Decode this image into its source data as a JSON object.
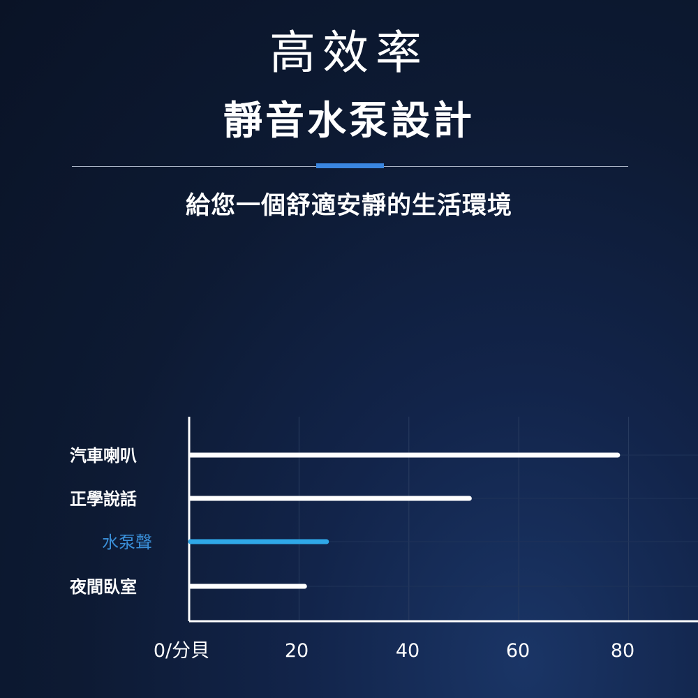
{
  "header": {
    "title": "高效率",
    "headline": "靜音水泵設計",
    "subtitle": "給您一個舒適安靜的生活環境"
  },
  "colors": {
    "accent": "#3a86e0",
    "highlight_bar": "#2fa8e8",
    "highlight_label": "#3a8fd8",
    "bar": "#ffffff",
    "background": "#0d1a33"
  },
  "chart_data": {
    "type": "bar",
    "orientation": "horizontal",
    "categories": [
      "汽車喇叭",
      "正學說話",
      "水泵聲",
      "夜間臥室"
    ],
    "values": [
      78,
      51,
      25,
      21
    ],
    "highlight": "水泵聲",
    "x_ticks": [
      "0/分貝",
      "20",
      "40",
      "60",
      "80"
    ],
    "xlim": [
      0,
      92
    ],
    "grid": true
  }
}
